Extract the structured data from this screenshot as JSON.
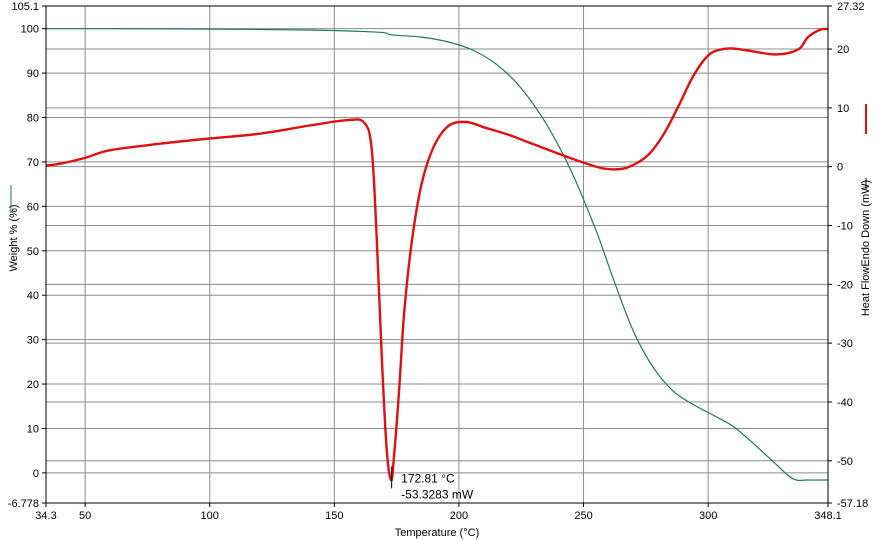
{
  "chart_data": {
    "type": "line",
    "xlabel": "Temperature (°C)",
    "ylabel_left": "Weight % (%)",
    "ylabel_right": "Heat FlowEndo Down (mW)",
    "xlim": [
      34.3,
      348.1
    ],
    "ylim_left": [
      -6.778,
      105.1
    ],
    "ylim_right": [
      -57.18,
      27.32
    ],
    "x_tick_labels": [
      "34.3",
      "50",
      "100",
      "150",
      "200",
      "250",
      "300",
      "348.1"
    ],
    "left_tick_labels": [
      "105.1",
      "100",
      "90",
      "80",
      "70",
      "60",
      "50",
      "40",
      "30",
      "20",
      "10",
      "0",
      "-6.778"
    ],
    "right_tick_labels": [
      "27.32",
      "20",
      "10",
      "0",
      "-10",
      "-20",
      "-30",
      "-40",
      "-50",
      "-57.18"
    ],
    "grid": true,
    "series": [
      {
        "axis": "left",
        "color": "#1a7a5c",
        "x": [
          34.3,
          60,
          100,
          140,
          160,
          170,
          172,
          175,
          185,
          195,
          205,
          215,
          225,
          235,
          245,
          255,
          262,
          270,
          278,
          286,
          294,
          302,
          310,
          318,
          326,
          334,
          340,
          348.1
        ],
        "y": [
          100.0,
          100.0,
          99.9,
          99.7,
          99.4,
          99.1,
          98.7,
          98.5,
          98.1,
          97.1,
          95.3,
          92.0,
          86.6,
          78.6,
          68.0,
          54.6,
          43.6,
          31.9,
          23.7,
          18.4,
          15.4,
          13.0,
          10.5,
          6.7,
          2.6,
          -1.3,
          -1.6,
          -1.6
        ]
      },
      {
        "axis": "right",
        "color": "#e01010",
        "x": [
          34.3,
          40,
          50,
          60,
          80,
          100,
          120,
          140,
          155,
          162,
          165,
          167,
          169,
          171,
          172.81,
          174,
          176,
          178,
          181,
          185,
          190,
          196,
          203,
          210,
          220,
          230,
          240,
          250,
          258,
          265,
          270,
          276,
          282,
          288,
          294,
          300,
          305,
          310,
          318,
          326,
          332,
          337,
          340,
          345,
          348.1
        ],
        "y": [
          0.2,
          0.5,
          1.5,
          2.8,
          3.9,
          4.8,
          5.6,
          7.0,
          7.9,
          7.5,
          3.0,
          -12.0,
          -32.0,
          -48.0,
          -53.3283,
          -49.0,
          -38.0,
          -25.0,
          -13.0,
          -3.0,
          3.5,
          7.0,
          7.6,
          6.7,
          5.4,
          3.8,
          2.2,
          0.7,
          -0.3,
          -0.4,
          0.3,
          2.0,
          5.4,
          10.2,
          15.4,
          18.9,
          19.9,
          20.1,
          19.6,
          19.1,
          19.3,
          20.2,
          22.0,
          23.3,
          23.4
        ]
      }
    ],
    "annotations": [
      {
        "x": 172.81,
        "y": -53.3283,
        "lines": [
          "172.81 °C",
          "-53.3283 mW"
        ]
      }
    ]
  }
}
